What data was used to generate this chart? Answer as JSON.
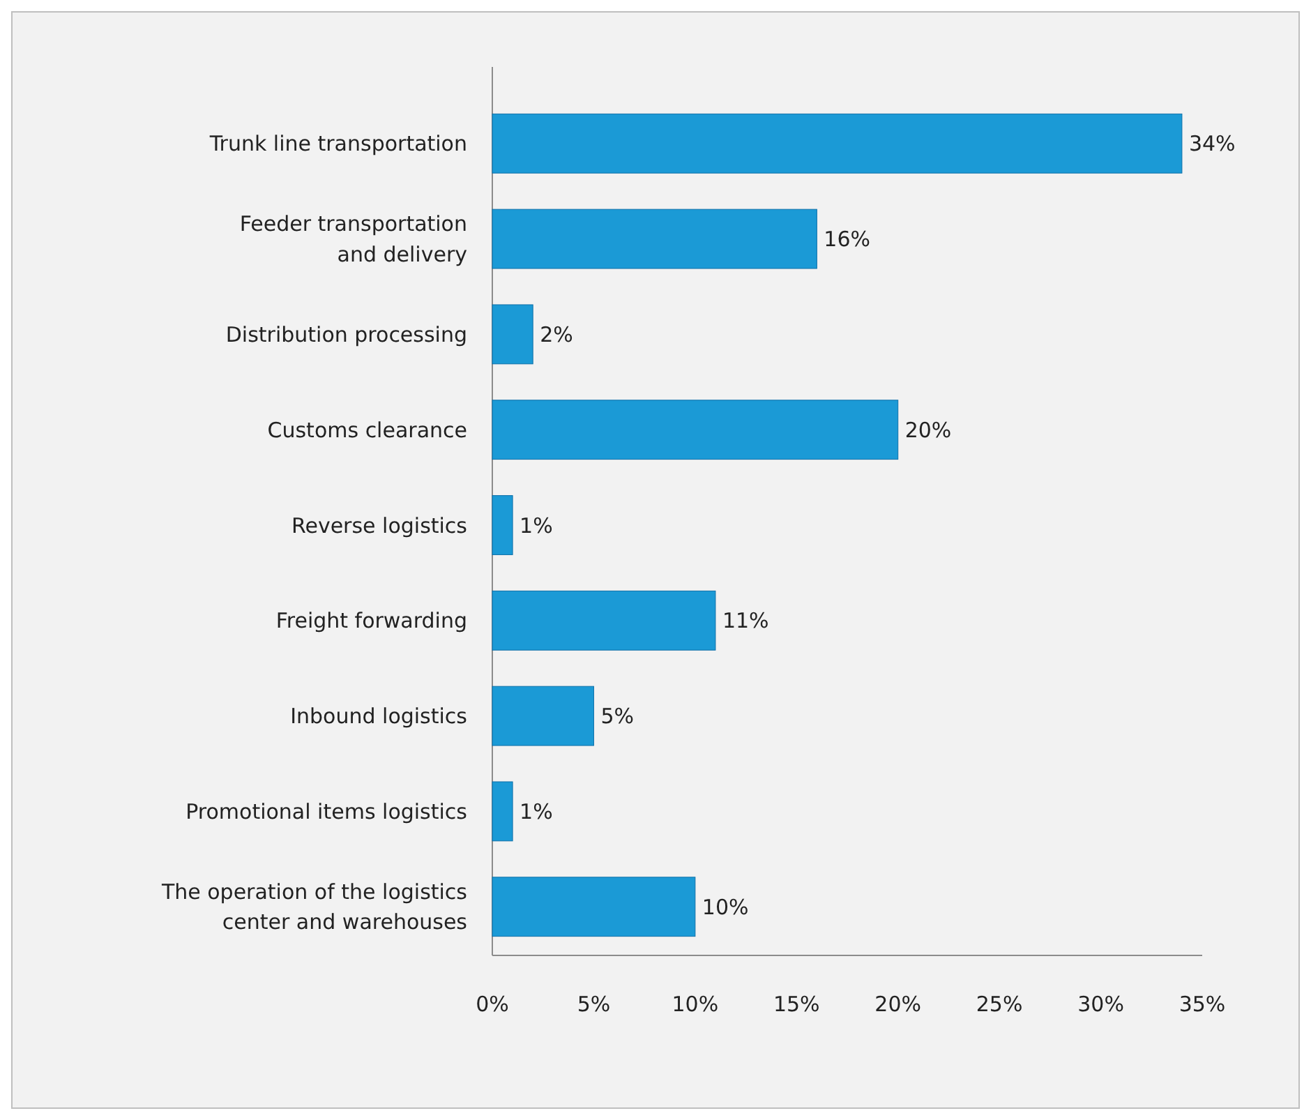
{
  "chart_data": {
    "type": "bar",
    "orientation": "horizontal",
    "categories": [
      "Trunk line transportation",
      "Feeder transportation and delivery",
      "Distribution processing",
      "Customs clearance",
      "Reverse logistics",
      "Freight forwarding",
      "Inbound logistics",
      "Promotional items logistics",
      "The operation of the logistics center and warehouses"
    ],
    "values": [
      34,
      16,
      2,
      20,
      1,
      11,
      5,
      1,
      10
    ],
    "value_labels": [
      "34%",
      "16%",
      "2%",
      "20%",
      "1%",
      "11%",
      "5%",
      "1%",
      "10%"
    ],
    "color": "#1b9ad6",
    "xlim": [
      0,
      35
    ],
    "xticks": [
      {
        "value": 0,
        "label": "0%"
      },
      {
        "value": 5,
        "label": "5%"
      },
      {
        "value": 10,
        "label": "10%"
      },
      {
        "value": 15,
        "label": "15%"
      },
      {
        "value": 20,
        "label": "20%"
      },
      {
        "value": 25,
        "label": "25%"
      },
      {
        "value": 30,
        "label": "30%"
      },
      {
        "value": 35,
        "label": "35%"
      }
    ],
    "grid": false
  }
}
